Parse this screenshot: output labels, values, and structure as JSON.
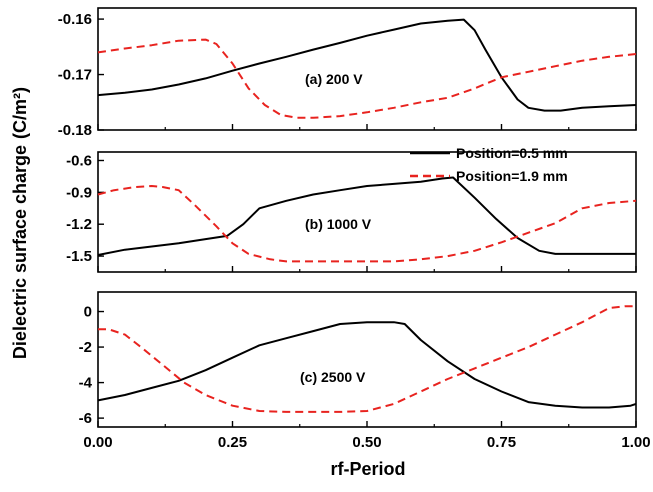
{
  "chart_data": {
    "type": "line",
    "xlabel": "rf-Period",
    "ylabel": "Dielectric surface charge",
    "ylabel_unit": "(C/m²)",
    "xlim": [
      0,
      1
    ],
    "x_ticks": [
      0.0,
      0.25,
      0.5,
      0.75,
      1.0
    ],
    "x_tick_labels": [
      "0.00",
      "0.25",
      "0.50",
      "0.75",
      "1.00"
    ],
    "legend": {
      "placement": "top-right of middle panel",
      "entries": [
        {
          "label": "Position=0.5 mm",
          "color": "#000000",
          "dash": "solid"
        },
        {
          "label": "Position=1.9 mm",
          "color": "#e8231f",
          "dash": "dashed"
        }
      ]
    },
    "colors": {
      "solid": "#000000",
      "dashed": "#e8231f"
    },
    "panels": [
      {
        "label": "(a) 200 V",
        "ylim": [
          -0.18,
          -0.158
        ],
        "y_ticks": [
          -0.16,
          -0.17,
          -0.18
        ],
        "y_tick_labels": [
          "-0.16",
          "-0.17",
          "-0.18"
        ],
        "series": [
          {
            "name": "Position=0.5 mm",
            "x": [
              0,
              0.05,
              0.1,
              0.15,
              0.2,
              0.25,
              0.3,
              0.35,
              0.4,
              0.45,
              0.5,
              0.55,
              0.6,
              0.65,
              0.68,
              0.7,
              0.72,
              0.75,
              0.78,
              0.8,
              0.83,
              0.86,
              0.9,
              0.95,
              1.0
            ],
            "y": [
              -0.1737,
              -0.1733,
              -0.1727,
              -0.1718,
              -0.1707,
              -0.1693,
              -0.168,
              -0.1668,
              -0.1655,
              -0.1643,
              -0.163,
              -0.1619,
              -0.1608,
              -0.1603,
              -0.1601,
              -0.162,
              -0.1655,
              -0.1705,
              -0.1745,
              -0.176,
              -0.1765,
              -0.1765,
              -0.176,
              -0.1757,
              -0.1755
            ]
          },
          {
            "name": "Position=1.9 mm",
            "x": [
              0,
              0.05,
              0.1,
              0.15,
              0.2,
              0.22,
              0.25,
              0.28,
              0.31,
              0.34,
              0.37,
              0.4,
              0.45,
              0.5,
              0.55,
              0.6,
              0.65,
              0.7,
              0.75,
              0.8,
              0.85,
              0.9,
              0.95,
              1.0
            ],
            "y": [
              -0.166,
              -0.1653,
              -0.1647,
              -0.1639,
              -0.1637,
              -0.1645,
              -0.168,
              -0.1725,
              -0.1755,
              -0.1773,
              -0.1778,
              -0.1778,
              -0.1775,
              -0.1768,
              -0.176,
              -0.175,
              -0.1742,
              -0.1725,
              -0.1705,
              -0.1695,
              -0.1685,
              -0.1675,
              -0.1668,
              -0.1663
            ]
          }
        ]
      },
      {
        "label": "(b) 1000 V",
        "ylim": [
          -1.65,
          -0.52
        ],
        "y_ticks": [
          -0.6,
          -0.9,
          -1.2,
          -1.5
        ],
        "y_tick_labels": [
          "-0.6",
          "-0.9",
          "-1.2",
          "-1.5"
        ],
        "series": [
          {
            "name": "Position=0.5 mm",
            "x": [
              0,
              0.05,
              0.1,
              0.15,
              0.2,
              0.24,
              0.27,
              0.3,
              0.35,
              0.4,
              0.45,
              0.5,
              0.55,
              0.6,
              0.64,
              0.66,
              0.7,
              0.74,
              0.78,
              0.82,
              0.85,
              0.9,
              0.95,
              1.0
            ],
            "y": [
              -1.49,
              -1.44,
              -1.41,
              -1.38,
              -1.34,
              -1.31,
              -1.2,
              -1.05,
              -0.98,
              -0.92,
              -0.88,
              -0.84,
              -0.82,
              -0.8,
              -0.77,
              -0.76,
              -0.95,
              -1.15,
              -1.33,
              -1.45,
              -1.48,
              -1.48,
              -1.48,
              -1.48
            ]
          },
          {
            "name": "Position=1.9 mm",
            "x": [
              0,
              0.03,
              0.07,
              0.1,
              0.12,
              0.15,
              0.18,
              0.22,
              0.25,
              0.28,
              0.32,
              0.35,
              0.4,
              0.45,
              0.5,
              0.55,
              0.6,
              0.65,
              0.7,
              0.75,
              0.8,
              0.85,
              0.9,
              0.95,
              1.0
            ],
            "y": [
              -0.92,
              -0.88,
              -0.85,
              -0.84,
              -0.85,
              -0.88,
              -1.02,
              -1.22,
              -1.38,
              -1.48,
              -1.53,
              -1.55,
              -1.55,
              -1.55,
              -1.55,
              -1.55,
              -1.53,
              -1.5,
              -1.45,
              -1.37,
              -1.28,
              -1.19,
              -1.05,
              -1.0,
              -0.98
            ]
          }
        ]
      },
      {
        "label": "(c) 2500 V",
        "ylim": [
          -6.5,
          1.1
        ],
        "y_ticks": [
          0,
          -2,
          -4,
          -6
        ],
        "y_tick_labels": [
          "0",
          "-2",
          "-4",
          "-6"
        ],
        "series": [
          {
            "name": "Position=0.5 mm",
            "x": [
              0,
              0.05,
              0.1,
              0.15,
              0.2,
              0.25,
              0.3,
              0.35,
              0.4,
              0.45,
              0.5,
              0.55,
              0.57,
              0.6,
              0.65,
              0.7,
              0.75,
              0.8,
              0.85,
              0.9,
              0.95,
              0.99,
              1.0
            ],
            "y": [
              -5.0,
              -4.7,
              -4.3,
              -3.9,
              -3.3,
              -2.6,
              -1.9,
              -1.5,
              -1.1,
              -0.7,
              -0.6,
              -0.6,
              -0.7,
              -1.6,
              -2.8,
              -3.8,
              -4.5,
              -5.1,
              -5.3,
              -5.4,
              -5.4,
              -5.3,
              -5.2
            ]
          },
          {
            "name": "Position=1.9 mm",
            "x": [
              0,
              0.02,
              0.05,
              0.08,
              0.12,
              0.16,
              0.2,
              0.25,
              0.3,
              0.35,
              0.4,
              0.45,
              0.5,
              0.55,
              0.6,
              0.65,
              0.7,
              0.75,
              0.8,
              0.85,
              0.9,
              0.95,
              0.98,
              1.0
            ],
            "y": [
              -1.0,
              -1.0,
              -1.3,
              -2.0,
              -3.0,
              -4.0,
              -4.7,
              -5.3,
              -5.6,
              -5.65,
              -5.65,
              -5.65,
              -5.6,
              -5.2,
              -4.5,
              -3.8,
              -3.2,
              -2.6,
              -2.0,
              -1.3,
              -0.6,
              0.2,
              0.3,
              0.3
            ]
          }
        ]
      }
    ]
  }
}
